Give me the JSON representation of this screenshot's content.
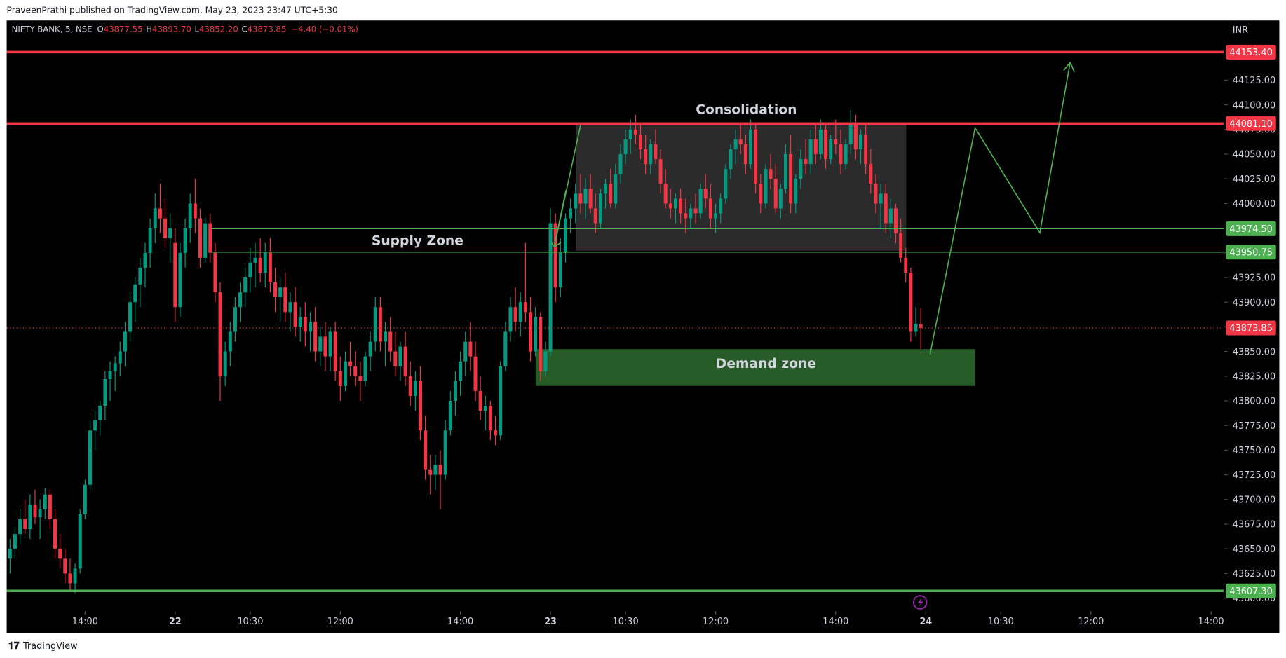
{
  "header": {
    "publisher": "PraveenPrathi published on TradingView.com, May 23, 2023 23:47 UTC+5:30"
  },
  "footer": {
    "brand": "TradingView"
  },
  "chart_data": {
    "type": "candlestick",
    "legend": {
      "symbol": "NIFTY BANK, 5, NSE",
      "items": [
        {
          "label": "O",
          "value": "43877.55"
        },
        {
          "label": "H",
          "value": "43893.70"
        },
        {
          "label": "L",
          "value": "43852.20"
        },
        {
          "label": "C",
          "value": "43873.85"
        }
      ],
      "change": "−4.40 (−0.01%)"
    },
    "currency": "INR",
    "up_color": "#089981",
    "down_color": "#f23645",
    "xlim": [
      -0.5,
      242.5
    ],
    "xticks": [
      {
        "value": 15,
        "label": "14:00"
      },
      {
        "value": 33,
        "label": "22"
      },
      {
        "value": 48,
        "label": "10:30"
      },
      {
        "value": 66,
        "label": "12:00"
      },
      {
        "value": 90,
        "label": "14:00"
      },
      {
        "value": 108,
        "label": "23"
      },
      {
        "value": 123,
        "label": "10:30"
      },
      {
        "value": 141,
        "label": "12:00"
      },
      {
        "value": 165,
        "label": "14:00"
      },
      {
        "value": 183,
        "label": "24"
      },
      {
        "value": 198,
        "label": "10:30"
      },
      {
        "value": 216,
        "label": "12:00"
      },
      {
        "value": 240,
        "label": "14:00"
      }
    ],
    "ylim": [
      43587.5,
      44185.5
    ],
    "yticks": [
      {
        "value": 43600,
        "label": "43600.00"
      },
      {
        "value": 43625,
        "label": "43625.00"
      },
      {
        "value": 43650,
        "label": "43650.00"
      },
      {
        "value": 43675,
        "label": "43675.00"
      },
      {
        "value": 43700,
        "label": "43700.00"
      },
      {
        "value": 43725,
        "label": "43725.00"
      },
      {
        "value": 43750,
        "label": "43750.00"
      },
      {
        "value": 43775,
        "label": "43775.00"
      },
      {
        "value": 43800,
        "label": "43800.00"
      },
      {
        "value": 43825,
        "label": "43825.00"
      },
      {
        "value": 43850,
        "label": "43850.00"
      },
      {
        "value": 43875,
        "label": "43875.00"
      },
      {
        "value": 43900,
        "label": "43900.00"
      },
      {
        "value": 43925,
        "label": "43925.00"
      },
      {
        "value": 43950,
        "label": "43950.00"
      },
      {
        "value": 43975,
        "label": "43975.00"
      },
      {
        "value": 44000,
        "label": "44000.00"
      },
      {
        "value": 44025,
        "label": "44025.00"
      },
      {
        "value": 44050,
        "label": "44050.00"
      },
      {
        "value": 44075,
        "label": "44075.00"
      },
      {
        "value": 44100,
        "label": "44100.00"
      },
      {
        "value": 44125,
        "label": "44125.00"
      }
    ],
    "price_lines": [
      {
        "value": 44153.4,
        "label": "44153.40",
        "color": "#f23645"
      },
      {
        "value": 44081.1,
        "label": "44081.10",
        "color": "#f23645"
      },
      {
        "value": 43974.5,
        "label": "43974.50",
        "color": "#4caf50"
      },
      {
        "value": 43950.75,
        "label": "43950.75",
        "color": "#4caf50"
      },
      {
        "value": 43607.3,
        "label": "43607.30",
        "color": "#4caf50"
      }
    ],
    "last_price": {
      "value": 43873.85,
      "label": "43873.85",
      "color": "#f23645"
    },
    "annotations": [
      "Consolidation",
      "Supply Zone",
      "Demand zone"
    ],
    "candles": [
      [
        43640,
        43660,
        43625,
        43650
      ],
      [
        43650,
        43672,
        43640,
        43665
      ],
      [
        43665,
        43690,
        43655,
        43680
      ],
      [
        43680,
        43700,
        43665,
        43670
      ],
      [
        43670,
        43705,
        43660,
        43695
      ],
      [
        43695,
        43710,
        43675,
        43682
      ],
      [
        43682,
        43700,
        43660,
        43690
      ],
      [
        43690,
        43712,
        43680,
        43705
      ],
      [
        43705,
        43710,
        43670,
        43680
      ],
      [
        43680,
        43690,
        43640,
        43650
      ],
      [
        43650,
        43665,
        43630,
        43640
      ],
      [
        43640,
        43650,
        43615,
        43625
      ],
      [
        43625,
        43640,
        43608,
        43615
      ],
      [
        43615,
        43635,
        43605,
        43630
      ],
      [
        43630,
        43690,
        43625,
        43685
      ],
      [
        43685,
        43720,
        43680,
        43715
      ],
      [
        43715,
        43780,
        43710,
        43770
      ],
      [
        43770,
        43790,
        43750,
        43780
      ],
      [
        43780,
        43800,
        43765,
        43795
      ],
      [
        43795,
        43830,
        43780,
        43822
      ],
      [
        43822,
        43840,
        43800,
        43830
      ],
      [
        43830,
        43845,
        43810,
        43838
      ],
      [
        43838,
        43860,
        43825,
        43850
      ],
      [
        43850,
        43880,
        43835,
        43870
      ],
      [
        43870,
        43910,
        43860,
        43900
      ],
      [
        43900,
        43925,
        43880,
        43918
      ],
      [
        43918,
        43945,
        43895,
        43935
      ],
      [
        43935,
        43960,
        43915,
        43950
      ],
      [
        43950,
        43985,
        43935,
        43975
      ],
      [
        43975,
        44010,
        43960,
        43995
      ],
      [
        43995,
        44020,
        43970,
        43985
      ],
      [
        43985,
        44005,
        43955,
        43965
      ],
      [
        43965,
        43990,
        43940,
        43975
      ],
      [
        43960,
        43975,
        43880,
        43895
      ],
      [
        43895,
        43960,
        43885,
        43950
      ],
      [
        43950,
        43985,
        43935,
        43975
      ],
      [
        43975,
        44010,
        43960,
        44000
      ],
      [
        44000,
        44025,
        43970,
        43985
      ],
      [
        43985,
        43995,
        43935,
        43945
      ],
      [
        43945,
        43985,
        43940,
        43980
      ],
      [
        43980,
        43990,
        43940,
        43950
      ],
      [
        43950,
        43960,
        43900,
        43910
      ],
      [
        43910,
        43920,
        43800,
        43825
      ],
      [
        43825,
        43860,
        43815,
        43850
      ],
      [
        43850,
        43880,
        43835,
        43870
      ],
      [
        43870,
        43905,
        43860,
        43895
      ],
      [
        43895,
        43920,
        43880,
        43910
      ],
      [
        43910,
        43935,
        43895,
        43925
      ],
      [
        43925,
        43955,
        43910,
        43940
      ],
      [
        43940,
        43960,
        43915,
        43945
      ],
      [
        43945,
        43965,
        43920,
        43930
      ],
      [
        43930,
        43960,
        43915,
        43950
      ],
      [
        43950,
        43965,
        43910,
        43920
      ],
      [
        43920,
        43935,
        43890,
        43905
      ],
      [
        43905,
        43925,
        43880,
        43915
      ],
      [
        43915,
        43930,
        43880,
        43890
      ],
      [
        43890,
        43910,
        43870,
        43900
      ],
      [
        43900,
        43915,
        43865,
        43875
      ],
      [
        43875,
        43895,
        43860,
        43885
      ],
      [
        43885,
        43900,
        43855,
        43870
      ],
      [
        43870,
        43890,
        43850,
        43880
      ],
      [
        43880,
        43895,
        43840,
        43850
      ],
      [
        43850,
        43875,
        43835,
        43865
      ],
      [
        43865,
        43880,
        43830,
        43845
      ],
      [
        43845,
        43875,
        43830,
        43870
      ],
      [
        43870,
        43880,
        43820,
        43830
      ],
      [
        43830,
        43845,
        43800,
        43815
      ],
      [
        43815,
        43850,
        43810,
        43840
      ],
      [
        43840,
        43860,
        43825,
        43835
      ],
      [
        43835,
        43850,
        43815,
        43825
      ],
      [
        43825,
        43840,
        43800,
        43820
      ],
      [
        43820,
        43850,
        43815,
        43845
      ],
      [
        43845,
        43870,
        43830,
        43860
      ],
      [
        43860,
        43905,
        43850,
        43895
      ],
      [
        43895,
        43905,
        43850,
        43860
      ],
      [
        43860,
        43880,
        43835,
        43870
      ],
      [
        43870,
        43885,
        43840,
        43850
      ],
      [
        43850,
        43870,
        43825,
        43835
      ],
      [
        43835,
        43860,
        43820,
        43855
      ],
      [
        43855,
        43870,
        43815,
        43825
      ],
      [
        43825,
        43840,
        43795,
        43805
      ],
      [
        43805,
        43830,
        43790,
        43820
      ],
      [
        43820,
        43835,
        43760,
        43770
      ],
      [
        43770,
        43785,
        43720,
        43730
      ],
      [
        43730,
        43745,
        43705,
        43725
      ],
      [
        43725,
        43745,
        43710,
        43735
      ],
      [
        43735,
        43750,
        43690,
        43725
      ],
      [
        43725,
        43780,
        43720,
        43770
      ],
      [
        43770,
        43810,
        43765,
        43800
      ],
      [
        43800,
        43830,
        43785,
        43820
      ],
      [
        43820,
        43850,
        43805,
        43840
      ],
      [
        43840,
        43870,
        43825,
        43860
      ],
      [
        43860,
        43880,
        43830,
        43845
      ],
      [
        43845,
        43860,
        43800,
        43810
      ],
      [
        43810,
        43825,
        43780,
        43790
      ],
      [
        43790,
        43805,
        43770,
        43795
      ],
      [
        43795,
        43800,
        43760,
        43770
      ],
      [
        43770,
        43785,
        43755,
        43765
      ],
      [
        43765,
        43840,
        43760,
        43835
      ],
      [
        43835,
        43880,
        43830,
        43870
      ],
      [
        43870,
        43905,
        43860,
        43895
      ],
      [
        43895,
        43915,
        43870,
        43880
      ],
      [
        43880,
        43910,
        43865,
        43900
      ],
      [
        43900,
        43960,
        43880,
        43890
      ],
      [
        43890,
        43905,
        43840,
        43850
      ],
      [
        43850,
        43895,
        43845,
        43885
      ],
      [
        43885,
        43890,
        43820,
        43830
      ],
      [
        43830,
        43860,
        43825,
        43850
      ],
      [
        43850,
        43995,
        43845,
        43980
      ],
      [
        43980,
        43990,
        43900,
        43915
      ],
      [
        43915,
        43965,
        43905,
        43950
      ],
      [
        43950,
        43990,
        43940,
        43985
      ],
      [
        43985,
        44005,
        43970,
        43995
      ],
      [
        43995,
        44020,
        43980,
        44010
      ],
      [
        44010,
        44030,
        43990,
        44000
      ],
      [
        44000,
        44025,
        43985,
        44015
      ],
      [
        44015,
        44030,
        43990,
        43995
      ],
      [
        43995,
        44010,
        43970,
        43980
      ],
      [
        43980,
        44015,
        43975,
        44010
      ],
      [
        44010,
        44025,
        43995,
        44020
      ],
      [
        44020,
        44035,
        43995,
        44000
      ],
      [
        44000,
        44040,
        43995,
        44030
      ],
      [
        44030,
        44060,
        44020,
        44050
      ],
      [
        44050,
        44075,
        44040,
        44065
      ],
      [
        44065,
        44085,
        44050,
        44075
      ],
      [
        44075,
        44090,
        44060,
        44070
      ],
      [
        44070,
        44080,
        44045,
        44055
      ],
      [
        44055,
        44070,
        44030,
        44040
      ],
      [
        44040,
        44065,
        44030,
        44060
      ],
      [
        44060,
        44075,
        44040,
        44045
      ],
      [
        44045,
        44055,
        44010,
        44020
      ],
      [
        44020,
        44035,
        43995,
        44000
      ],
      [
        44000,
        44015,
        43985,
        43995
      ],
      [
        43995,
        44010,
        43980,
        44005
      ],
      [
        44005,
        44015,
        43980,
        43990
      ],
      [
        43990,
        44005,
        43970,
        43985
      ],
      [
        43985,
        44000,
        43975,
        43995
      ],
      [
        43995,
        44010,
        43980,
        43990
      ],
      [
        43990,
        44020,
        43985,
        44015
      ],
      [
        44015,
        44030,
        43995,
        44005
      ],
      [
        44005,
        44020,
        43975,
        43985
      ],
      [
        43985,
        44000,
        43970,
        43990
      ],
      [
        43990,
        44010,
        43980,
        44005
      ],
      [
        44005,
        44040,
        44000,
        44035
      ],
      [
        44035,
        44060,
        44025,
        44055
      ],
      [
        44055,
        44075,
        44040,
        44065
      ],
      [
        44065,
        44080,
        44050,
        44060
      ],
      [
        44060,
        44070,
        44030,
        44040
      ],
      [
        44040,
        44085,
        44035,
        44075
      ],
      [
        44075,
        44080,
        44010,
        44020
      ],
      [
        44020,
        44030,
        43990,
        44000
      ],
      [
        44000,
        44040,
        43995,
        44035
      ],
      [
        44035,
        44050,
        44015,
        44025
      ],
      [
        44025,
        44040,
        43990,
        43995
      ],
      [
        43995,
        44020,
        43985,
        44015
      ],
      [
        44015,
        44060,
        44010,
        44050
      ],
      [
        44050,
        44070,
        43990,
        44000
      ],
      [
        44000,
        44030,
        43990,
        44025
      ],
      [
        44025,
        44055,
        44015,
        44045
      ],
      [
        44045,
        44065,
        44030,
        44040
      ],
      [
        44040,
        44075,
        44030,
        44065
      ],
      [
        44065,
        44080,
        44040,
        44050
      ],
      [
        44050,
        44085,
        44045,
        44075
      ],
      [
        44075,
        44080,
        44035,
        44045
      ],
      [
        44045,
        44070,
        44040,
        44065
      ],
      [
        44065,
        44085,
        44050,
        44060
      ],
      [
        44060,
        44075,
        44030,
        44040
      ],
      [
        44040,
        44065,
        44035,
        44060
      ],
      [
        44060,
        44095,
        44050,
        44080
      ],
      [
        44080,
        44090,
        44045,
        44055
      ],
      [
        44055,
        44075,
        44040,
        44070
      ],
      [
        44070,
        44080,
        44030,
        44040
      ],
      [
        44040,
        44055,
        44010,
        44020
      ],
      [
        44020,
        44030,
        43990,
        44000
      ],
      [
        44000,
        44020,
        43975,
        44010
      ],
      [
        44010,
        44020,
        43970,
        43980
      ],
      [
        43980,
        44005,
        43965,
        43995
      ],
      [
        43995,
        44000,
        43960,
        43970
      ],
      [
        43970,
        43985,
        43940,
        43945
      ],
      [
        43945,
        43955,
        43920,
        43930
      ],
      [
        43930,
        43935,
        43860,
        43870
      ],
      [
        43870,
        43895,
        43865,
        43878
      ],
      [
        43877.55,
        43893.7,
        43852.2,
        43873.85
      ]
    ]
  }
}
